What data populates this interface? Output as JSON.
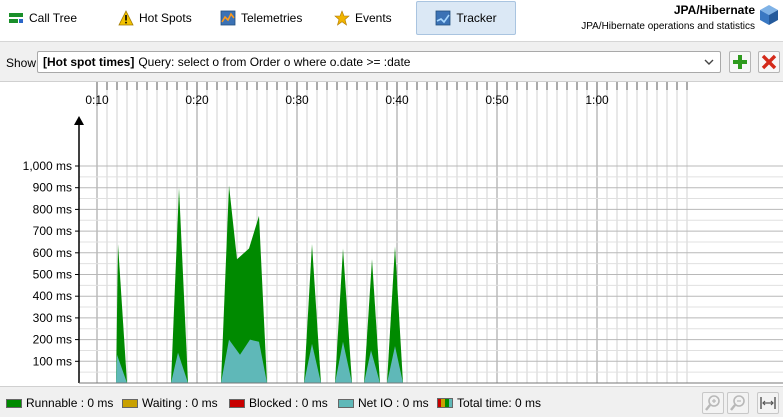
{
  "toolbar": {
    "tabs": [
      {
        "label": "Call Tree",
        "icon": "call-tree-icon"
      },
      {
        "label": "Hot Spots",
        "icon": "warning-icon"
      },
      {
        "label": "Telemetries",
        "icon": "telemetries-icon"
      },
      {
        "label": "Events",
        "icon": "star-icon"
      },
      {
        "label": "Tracker",
        "icon": "tracker-icon",
        "active": true
      }
    ],
    "title": "JPA/Hibernate",
    "subtitle": "JPA/Hibernate operations and statistics"
  },
  "show_row": {
    "label": "Show:",
    "selected_prefix": "[Hot spot times]",
    "selected_text": "Query: select o from Order o where o.date >= :date"
  },
  "chart_data": {
    "type": "area",
    "x_ticks": [
      "0:10",
      "0:20",
      "0:30",
      "0:40",
      "0:50",
      "1:00"
    ],
    "x_tick_seconds": [
      10,
      20,
      30,
      40,
      50,
      60
    ],
    "x_range_seconds": [
      0,
      69
    ],
    "ylim": [
      0,
      1000
    ],
    "y_ticks": [
      "100 ms",
      "200 ms",
      "300 ms",
      "400 ms",
      "500 ms",
      "600 ms",
      "700 ms",
      "800 ms",
      "900 ms",
      "1,000 ms"
    ],
    "y_tick_values": [
      100,
      200,
      300,
      400,
      500,
      600,
      700,
      800,
      900,
      1000
    ],
    "grid": true,
    "series": [
      {
        "name": "Runnable",
        "color": "#008a00",
        "points": [
          [
            11.9,
            0
          ],
          [
            12.1,
            640
          ],
          [
            13.0,
            0
          ],
          [
            17.4,
            0
          ],
          [
            18.2,
            900
          ],
          [
            19.1,
            0
          ],
          [
            22.4,
            0
          ],
          [
            23.2,
            910
          ],
          [
            24.0,
            570
          ],
          [
            25.2,
            620
          ],
          [
            26.2,
            770
          ],
          [
            27.0,
            0
          ],
          [
            30.7,
            0
          ],
          [
            31.5,
            640
          ],
          [
            32.4,
            0
          ],
          [
            33.8,
            0
          ],
          [
            34.6,
            620
          ],
          [
            35.5,
            0
          ],
          [
            36.7,
            0
          ],
          [
            37.5,
            570
          ],
          [
            38.3,
            0
          ],
          [
            39.0,
            0
          ],
          [
            39.8,
            630
          ],
          [
            40.6,
            0
          ]
        ]
      },
      {
        "name": "Net IO",
        "color": "#5fb8b8",
        "points": [
          [
            11.9,
            0
          ],
          [
            12.0,
            130
          ],
          [
            13.0,
            0
          ],
          [
            17.4,
            0
          ],
          [
            18.1,
            140
          ],
          [
            19.1,
            0
          ],
          [
            22.4,
            0
          ],
          [
            23.2,
            200
          ],
          [
            24.3,
            130
          ],
          [
            25.3,
            200
          ],
          [
            26.2,
            190
          ],
          [
            27.0,
            0
          ],
          [
            30.7,
            0
          ],
          [
            31.5,
            180
          ],
          [
            32.4,
            0
          ],
          [
            33.8,
            0
          ],
          [
            34.6,
            190
          ],
          [
            35.5,
            0
          ],
          [
            36.7,
            0
          ],
          [
            37.4,
            150
          ],
          [
            38.3,
            0
          ],
          [
            39.0,
            0
          ],
          [
            39.8,
            170
          ],
          [
            40.6,
            0
          ]
        ]
      }
    ]
  },
  "legend": [
    {
      "label": "Runnable : 0 ms",
      "color": "#008a00"
    },
    {
      "label": "Waiting : 0 ms",
      "color": "#c8a000"
    },
    {
      "label": "Blocked : 0 ms",
      "color": "#c80000"
    },
    {
      "label": "Net IO : 0 ms",
      "color": "#5fb8b8"
    },
    {
      "label": "Total time: 0 ms",
      "color": "multi"
    }
  ]
}
